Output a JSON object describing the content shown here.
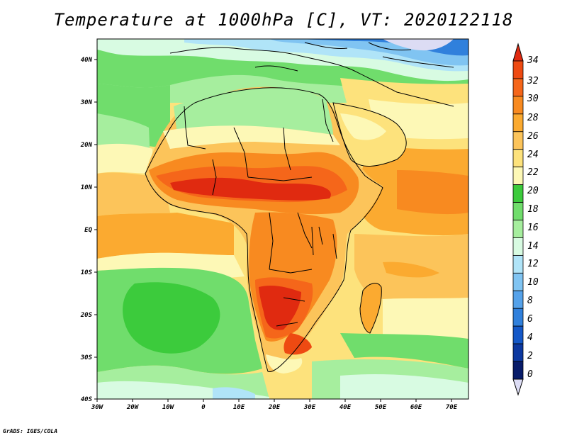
{
  "title": "Temperature at 1000hPa [C], VT: 2020122118",
  "credit": "GrADS: IGES/COLA",
  "map": {
    "lon_labels": [
      "30W",
      "20W",
      "10W",
      "0",
      "10E",
      "20E",
      "30E",
      "40E",
      "50E",
      "60E",
      "70E"
    ],
    "lat_labels": [
      "40N",
      "30N",
      "20N",
      "10N",
      "EQ",
      "10S",
      "20S",
      "30S",
      "40S"
    ],
    "lon_range": [
      -30,
      75
    ],
    "lat_range": [
      -40,
      45
    ]
  },
  "colorbar": {
    "labels": [
      "34",
      "32",
      "30",
      "28",
      "26",
      "24",
      "22",
      "20",
      "18",
      "16",
      "14",
      "12",
      "10",
      "8",
      "6",
      "4",
      "2",
      "0"
    ],
    "colors": [
      "#e02a10",
      "#ee4a12",
      "#f5661a",
      "#f88a20",
      "#fbaa30",
      "#fcc45a",
      "#fde27c",
      "#fdf8b6",
      "#3ccb3c",
      "#70dd6c",
      "#a6ee9e",
      "#d8fbe2",
      "#b0e4f8",
      "#80c4f2",
      "#55a2ea",
      "#3080dc",
      "#1458c8",
      "#0c38a0",
      "#081c6a",
      "#dcdcf4"
    ],
    "top_triangle_color": "#e02a10",
    "bottom_triangle_color": "#dcdcf4"
  }
}
